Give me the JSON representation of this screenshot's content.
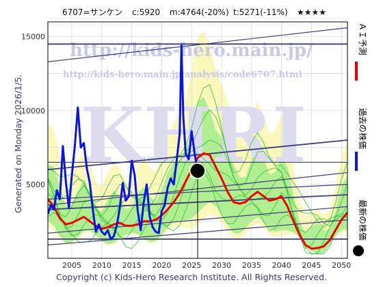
{
  "header": {
    "ticker": "6707=サンケン",
    "current": "c:5920",
    "m_value": "m:4764(-20%)",
    "t_value": "t:5271(-11%)",
    "stars": "★★★★"
  },
  "side_label": "Generated on Monday 2026/1/5.",
  "footer": "Copyright (c) Kids-Hero Research Institute. All Rights Reserved.",
  "watermark": {
    "url_main": "http://kids-hero.main.jp/",
    "url_sub": "http://kids-hero.main.jp/analysis/code6707.html",
    "big": "KHRI"
  },
  "legend": {
    "ai_forecast": "ＡＩ予測",
    "past_price": "過去の株価",
    "latest_price": "最新の株価"
  },
  "colors": {
    "past_price": "#0a14e0",
    "ai_forecast": "#ee0000",
    "band_yellow": "#fbf7b5",
    "band_green": "#a6ec8c",
    "green_line": "#2fbf2f",
    "trend_line": "#3c3c78"
  },
  "chart_data": {
    "type": "line",
    "xlim": [
      2001,
      2051
    ],
    "ylim": [
      0,
      16000
    ],
    "x_ticks": [
      2005,
      2010,
      2015,
      2020,
      2025,
      2030,
      2035,
      2040,
      2045,
      2050
    ],
    "y_ticks": [
      5000,
      10000,
      15000
    ],
    "grid": true,
    "latest_point": {
      "x": 2026.0,
      "y": 5920
    },
    "series": [
      {
        "name": "過去の株価",
        "x": [
          2001.0,
          2001.5,
          2002.0,
          2002.5,
          2003.0,
          2003.5,
          2004.0,
          2004.5,
          2005.0,
          2005.5,
          2006.0,
          2006.5,
          2007.0,
          2007.5,
          2008.0,
          2008.5,
          2009.0,
          2009.5,
          2010.0,
          2010.5,
          2011.0,
          2011.5,
          2012.0,
          2012.5,
          2013.0,
          2013.5,
          2014.0,
          2014.5,
          2015.0,
          2015.5,
          2016.0,
          2016.5,
          2017.0,
          2017.5,
          2018.0,
          2018.5,
          2019.0,
          2019.5,
          2020.0,
          2020.5,
          2021.0,
          2021.5,
          2022.0,
          2022.5,
          2023.0,
          2023.3,
          2023.6,
          2024.0,
          2024.5,
          2025.0,
          2025.5,
          2026.0
        ],
        "y": [
          3000,
          3600,
          3300,
          4600,
          4000,
          7600,
          5200,
          3400,
          5600,
          7600,
          10200,
          7500,
          7800,
          6100,
          5100,
          3300,
          1800,
          2300,
          1800,
          1600,
          1900,
          1300,
          1500,
          2200,
          3400,
          5100,
          3900,
          4200,
          6600,
          5600,
          3200,
          1900,
          3800,
          5000,
          2800,
          2100,
          1800,
          1700,
          3200,
          3600,
          4800,
          5400,
          5000,
          6600,
          8400,
          14400,
          9600,
          7100,
          6700,
          8600,
          7100,
          5920
        ]
      },
      {
        "name": "ＡＩ予測",
        "x": [
          2001.0,
          2002.0,
          2003.0,
          2004.0,
          2005.0,
          2006.0,
          2007.0,
          2008.0,
          2009.0,
          2010.0,
          2011.0,
          2012.0,
          2013.0,
          2014.0,
          2015.0,
          2016.0,
          2017.0,
          2018.0,
          2019.0,
          2020.0,
          2021.0,
          2022.0,
          2023.0,
          2024.0,
          2025.0,
          2026.0,
          2027.0,
          2028.0,
          2029.0,
          2030.0,
          2031.0,
          2032.0,
          2033.0,
          2034.0,
          2035.0,
          2036.0,
          2037.0,
          2038.0,
          2039.0,
          2040.0,
          2041.0,
          2042.0,
          2043.0,
          2044.0,
          2045.0,
          2046.0,
          2047.0,
          2048.0,
          2049.0,
          2050.0,
          2051.0
        ],
        "y": [
          4000,
          3500,
          2700,
          2300,
          2400,
          2600,
          2800,
          2500,
          2200,
          2000,
          2100,
          2300,
          2400,
          2200,
          2200,
          2300,
          2500,
          2500,
          2600,
          2900,
          3300,
          3800,
          4400,
          5200,
          6000,
          6800,
          7100,
          7000,
          6200,
          5400,
          4500,
          3800,
          3700,
          3800,
          4200,
          4500,
          4200,
          3900,
          4000,
          4200,
          3500,
          2500,
          1600,
          900,
          650,
          700,
          800,
          1200,
          1900,
          2600,
          3100
        ]
      }
    ]
  }
}
